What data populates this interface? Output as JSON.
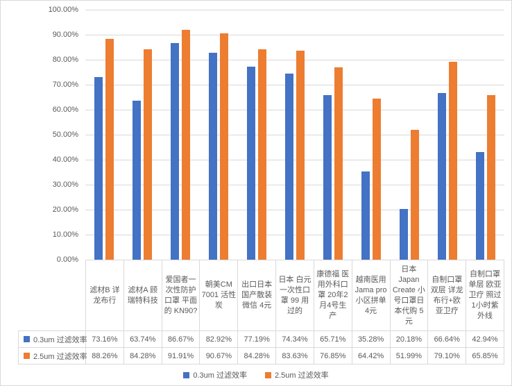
{
  "chart_data": {
    "type": "bar",
    "title": "",
    "xlabel": "",
    "ylabel": "",
    "ylim": [
      0,
      100
    ],
    "ytick_step": 10,
    "ytick_labels": [
      "100.00%",
      "90.00%",
      "80.00%",
      "70.00%",
      "60.00%",
      "50.00%",
      "40.00%",
      "30.00%",
      "20.00%",
      "10.00%",
      "0.00%"
    ],
    "grid": true,
    "legend_position": "bottom",
    "data_table_shown": true,
    "categories": [
      "滤材B 详龙布行",
      "滤材A 顾瑞特科技",
      "爱国者一次性防护口罩 平面的 KN90?",
      "朝美CM 7001 活性炭",
      "出口日本国产散装微信 4元",
      "日本 白元 一次性口罩 99 用过的",
      "康德福 医用外科口罩 20年2月4号生产",
      "越南医用 Jama pro 小区拼单 4元",
      "日本 Japan Create 小号口罩日本代购 5 元",
      "自制口罩 双层 详龙布行+欧亚卫疗",
      "自制口罩 单层 欧亚卫疗 照过1小时紫外线"
    ],
    "series": [
      {
        "name": "0.3um 过滤效率",
        "color": "#4472C4",
        "values": [
          73.16,
          63.74,
          86.67,
          82.92,
          77.19,
          74.34,
          65.71,
          35.28,
          20.18,
          66.64,
          42.94
        ]
      },
      {
        "name": "2.5um 过滤效率",
        "color": "#ED7D31",
        "values": [
          88.26,
          84.28,
          91.91,
          90.67,
          84.28,
          83.63,
          76.85,
          64.42,
          51.99,
          79.1,
          65.85
        ]
      }
    ]
  },
  "colors": {
    "series_blue": "#4472C4",
    "series_orange": "#ED7D31",
    "gridline": "#D9D9D9",
    "table_border": "#D9D9D9",
    "text": "#595959",
    "background": "#FFFFFF"
  }
}
